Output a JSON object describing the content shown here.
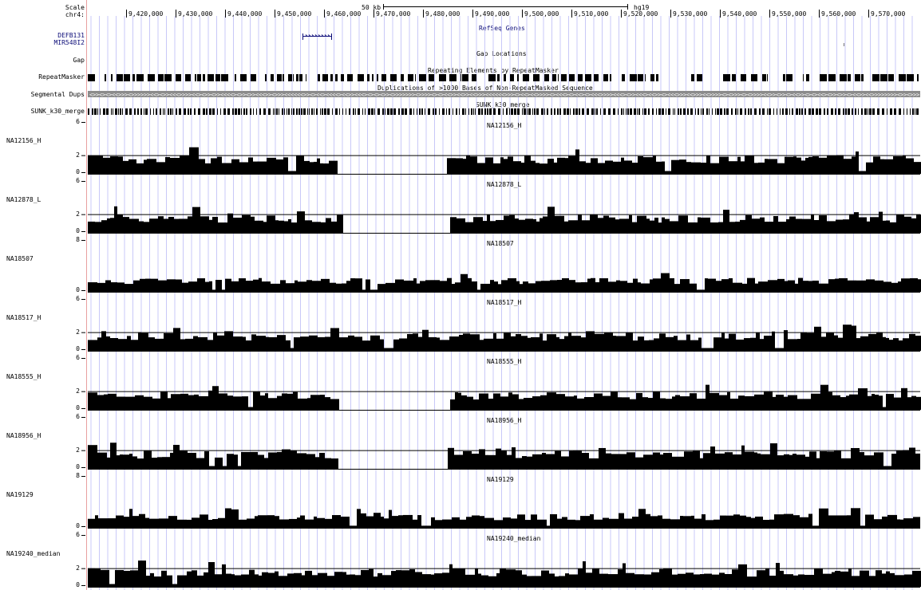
{
  "header": {
    "scale_label": "Scale",
    "chrom_label": "chr4:",
    "scale_bar_text": "50 kb",
    "assembly": "hg19",
    "ruler_ticks": [
      "9,420,000",
      "9,430,000",
      "9,440,000",
      "9,450,000",
      "9,460,000",
      "9,470,000",
      "9,480,000",
      "9,490,000",
      "9,500,000",
      "9,510,000",
      "9,520,000",
      "9,530,000",
      "9,540,000",
      "9,550,000",
      "9,560,000",
      "9,570,000"
    ]
  },
  "tracks": {
    "refseq": {
      "genes": [
        "DEFB131",
        "MIR548I2"
      ],
      "title": "RefSeq Genes"
    },
    "gap": {
      "label": "Gap",
      "title": "Gap Locations"
    },
    "repeatmasker": {
      "label": "RepeatMasker",
      "title": "Repeating Elements by RepeatMasker"
    },
    "segdups": {
      "label": "Segmental Dups",
      "title": "Duplications of >1000 Bases of Non-RepeatMasked Sequence"
    },
    "sunk": {
      "label": "SUNK_k30_merge",
      "title": "SUNK_k30_merge"
    }
  },
  "coverage_tracks": [
    {
      "name": "NA12156_H",
      "max": "6",
      "mid": "2",
      "min": "0",
      "gap": [
        0.3,
        0.43
      ],
      "seed": 3
    },
    {
      "name": "NA12878_L",
      "max": "6",
      "mid": "2",
      "min": "0",
      "gap": [
        0.3,
        0.43
      ],
      "seed": 7
    },
    {
      "name": "NA18507",
      "max": "8",
      "mid": "",
      "min": "0",
      "gap": null,
      "seed": 11
    },
    {
      "name": "NA18517_H",
      "max": "6",
      "mid": "2",
      "min": "0",
      "gap": null,
      "seed": 17
    },
    {
      "name": "NA18555_H",
      "max": "6",
      "mid": "2",
      "min": "0",
      "gap": [
        0.3,
        0.43
      ],
      "seed": 23
    },
    {
      "name": "NA18956_H",
      "max": "6",
      "mid": "2",
      "min": "0",
      "gap": [
        0.3,
        0.43
      ],
      "seed": 29
    },
    {
      "name": "NA19129",
      "max": "8",
      "mid": "",
      "min": "0",
      "gap": null,
      "seed": 31
    },
    {
      "name": "NA19240_median",
      "max": "6",
      "mid": "2",
      "min": "0",
      "gap": null,
      "seed": 37
    }
  ],
  "colors": {
    "gene_blue": "#0c0c78",
    "grid_blue": "#c8c8f8",
    "left_border_red": "#e8a0a0",
    "segdup_gray": "#8c8c8c"
  }
}
